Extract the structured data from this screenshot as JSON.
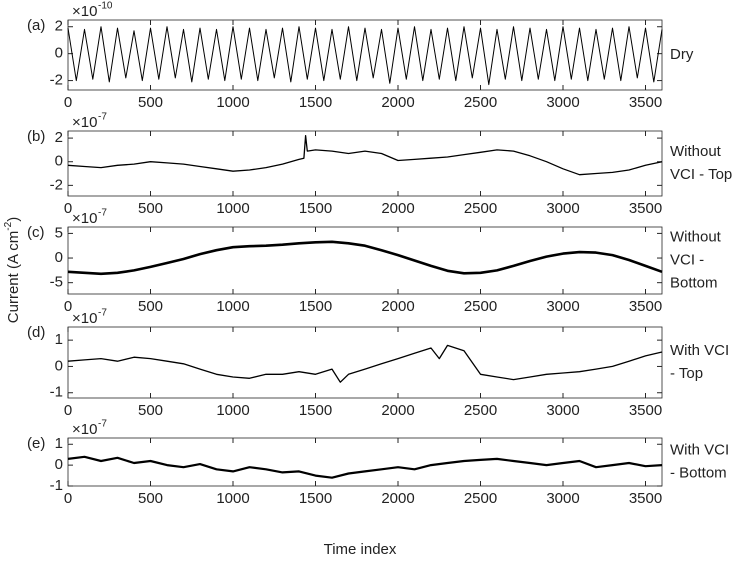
{
  "figure": {
    "y_label": [
      "Current (A cm",
      "-2",
      ")"
    ],
    "x_label": "Time index"
  },
  "chart_data": [
    {
      "type": "line",
      "panel_label": "(a)",
      "side_label": [
        "Dry"
      ],
      "color": "#000000",
      "line_width": 1,
      "y_multiplier": {
        "base": "×10",
        "exponent": "-10"
      },
      "xlim": [
        0,
        3600
      ],
      "xticks": [
        0,
        500,
        1000,
        1500,
        2000,
        2500,
        3000,
        3500
      ],
      "ylim": [
        -2.7,
        2.5
      ],
      "yticks": [
        -2,
        0,
        2
      ],
      "x": [
        0,
        50,
        100,
        150,
        200,
        250,
        300,
        350,
        400,
        450,
        500,
        550,
        600,
        650,
        700,
        750,
        800,
        850,
        900,
        950,
        1000,
        1050,
        1100,
        1150,
        1200,
        1250,
        1300,
        1350,
        1400,
        1450,
        1500,
        1550,
        1600,
        1650,
        1700,
        1750,
        1800,
        1850,
        1900,
        1950,
        2000,
        2050,
        2100,
        2150,
        2200,
        2250,
        2300,
        2350,
        2400,
        2450,
        2500,
        2550,
        2600,
        2650,
        2700,
        2750,
        2800,
        2850,
        2900,
        2950,
        3000,
        3050,
        3100,
        3150,
        3200,
        3250,
        3300,
        3350,
        3400,
        3450,
        3500,
        3550,
        3600
      ],
      "values": [
        1.9,
        -2.0,
        1.8,
        -1.9,
        2.0,
        -2.1,
        1.9,
        -1.8,
        1.7,
        -2.0,
        1.9,
        -1.9,
        2.0,
        -1.8,
        1.8,
        -2.1,
        1.9,
        -1.9,
        1.8,
        -2.0,
        2.0,
        -1.9,
        1.9,
        -2.0,
        1.8,
        -1.8,
        1.9,
        -2.1,
        2.0,
        -1.9,
        1.9,
        -2.0,
        1.8,
        -1.9,
        2.0,
        -2.0,
        1.9,
        -1.8,
        1.8,
        -2.2,
        1.9,
        -1.9,
        2.0,
        -2.0,
        1.8,
        -1.9,
        1.9,
        -2.0,
        2.0,
        -1.8,
        1.9,
        -2.3,
        1.8,
        -1.9,
        2.0,
        -2.0,
        1.9,
        -1.9,
        1.8,
        -2.0,
        2.0,
        -1.9,
        1.9,
        -2.0,
        1.8,
        -1.9,
        1.9,
        -2.0,
        2.0,
        -1.8,
        1.9,
        -2.1,
        1.8
      ]
    },
    {
      "type": "line",
      "panel_label": "(b)",
      "side_label": [
        "Without",
        "VCI - Top"
      ],
      "color": "#000000",
      "line_width": 1.3,
      "y_multiplier": {
        "base": "×10",
        "exponent": "-7"
      },
      "xlim": [
        0,
        3600
      ],
      "xticks": [
        0,
        500,
        1000,
        1500,
        2000,
        2500,
        3000,
        3500
      ],
      "ylim": [
        -2.9,
        2.6
      ],
      "yticks": [
        -2,
        0,
        2
      ],
      "x": [
        0,
        100,
        200,
        300,
        400,
        500,
        600,
        700,
        800,
        900,
        1000,
        1100,
        1200,
        1300,
        1400,
        1430,
        1440,
        1450,
        1500,
        1600,
        1700,
        1800,
        1900,
        2000,
        2100,
        2200,
        2300,
        2400,
        2500,
        2600,
        2700,
        2800,
        2900,
        3000,
        3100,
        3200,
        3300,
        3400,
        3500,
        3600
      ],
      "values": [
        -0.3,
        -0.4,
        -0.5,
        -0.3,
        -0.2,
        0,
        -0.1,
        -0.2,
        -0.4,
        -0.6,
        -0.8,
        -0.7,
        -0.5,
        -0.2,
        0.2,
        0.3,
        2.2,
        0.9,
        1.0,
        0.9,
        0.7,
        0.9,
        0.7,
        0.1,
        0.2,
        0.3,
        0.4,
        0.6,
        0.8,
        1.0,
        0.9,
        0.5,
        0,
        -0.6,
        -1.1,
        -1.0,
        -0.9,
        -0.7,
        -0.3,
        0
      ]
    },
    {
      "type": "line",
      "panel_label": "(c)",
      "side_label": [
        "Without",
        "VCI -",
        "Bottom"
      ],
      "color": "#000000",
      "line_width": 2.6,
      "y_multiplier": {
        "base": "×10",
        "exponent": "-7"
      },
      "xlim": [
        0,
        3600
      ],
      "xticks": [
        0,
        500,
        1000,
        1500,
        2000,
        2500,
        3000,
        3500
      ],
      "ylim": [
        -7.3,
        6.3
      ],
      "yticks": [
        -5,
        0,
        5
      ],
      "x": [
        0,
        100,
        200,
        300,
        400,
        500,
        600,
        700,
        800,
        900,
        1000,
        1100,
        1200,
        1300,
        1400,
        1500,
        1600,
        1700,
        1800,
        1900,
        2000,
        2100,
        2200,
        2300,
        2400,
        2500,
        2600,
        2700,
        2800,
        2900,
        3000,
        3100,
        3200,
        3300,
        3400,
        3500,
        3600
      ],
      "values": [
        -2.8,
        -3.0,
        -3.2,
        -3.0,
        -2.5,
        -1.8,
        -1.0,
        -0.2,
        0.8,
        1.6,
        2.2,
        2.4,
        2.5,
        2.7,
        3.0,
        3.2,
        3.3,
        3.0,
        2.5,
        1.6,
        0.6,
        -0.5,
        -1.6,
        -2.6,
        -3.1,
        -3.0,
        -2.5,
        -1.6,
        -0.6,
        0.3,
        0.9,
        1.2,
        1.1,
        0.6,
        -0.4,
        -1.6,
        -2.8
      ]
    },
    {
      "type": "line",
      "panel_label": "(d)",
      "side_label": [
        "With VCI",
        "- Top"
      ],
      "color": "#000000",
      "line_width": 1.3,
      "y_multiplier": {
        "base": "×10",
        "exponent": "-7"
      },
      "xlim": [
        0,
        3600
      ],
      "xticks": [
        0,
        500,
        1000,
        1500,
        2000,
        2500,
        3000,
        3500
      ],
      "ylim": [
        -1.2,
        1.5
      ],
      "yticks": [
        -1,
        0,
        1
      ],
      "x": [
        0,
        100,
        200,
        300,
        400,
        500,
        600,
        700,
        800,
        900,
        1000,
        1100,
        1200,
        1300,
        1400,
        1500,
        1600,
        1650,
        1700,
        1800,
        1900,
        2000,
        2100,
        2200,
        2250,
        2300,
        2400,
        2500,
        2600,
        2700,
        2800,
        2900,
        3000,
        3100,
        3200,
        3300,
        3400,
        3500,
        3600
      ],
      "values": [
        0.2,
        0.25,
        0.3,
        0.2,
        0.35,
        0.3,
        0.2,
        0.1,
        -0.1,
        -0.3,
        -0.4,
        -0.45,
        -0.3,
        -0.3,
        -0.2,
        -0.3,
        -0.1,
        -0.6,
        -0.3,
        -0.1,
        0.1,
        0.3,
        0.5,
        0.7,
        0.3,
        0.8,
        0.6,
        -0.3,
        -0.4,
        -0.5,
        -0.4,
        -0.3,
        -0.25,
        -0.2,
        -0.1,
        0,
        0.2,
        0.4,
        0.55
      ]
    },
    {
      "type": "line",
      "panel_label": "(e)",
      "side_label": [
        "With VCI",
        "- Bottom"
      ],
      "color": "#000000",
      "line_width": 2.2,
      "y_multiplier": {
        "base": "×10",
        "exponent": "-7"
      },
      "xlim": [
        0,
        3600
      ],
      "xticks": [
        0,
        500,
        1000,
        1500,
        2000,
        2500,
        3000,
        3500
      ],
      "ylim": [
        -1,
        1.3
      ],
      "yticks": [
        -1,
        0,
        1
      ],
      "x": [
        0,
        100,
        200,
        300,
        400,
        500,
        600,
        700,
        800,
        900,
        1000,
        1100,
        1200,
        1300,
        1400,
        1500,
        1600,
        1700,
        1800,
        1900,
        2000,
        2100,
        2200,
        2300,
        2400,
        2500,
        2600,
        2700,
        2800,
        2900,
        3000,
        3100,
        3200,
        3300,
        3400,
        3500,
        3600
      ],
      "values": [
        0.3,
        0.4,
        0.2,
        0.35,
        0.1,
        0.2,
        0,
        -0.1,
        0.05,
        -0.2,
        -0.3,
        -0.1,
        -0.2,
        -0.35,
        -0.3,
        -0.5,
        -0.6,
        -0.4,
        -0.3,
        -0.2,
        -0.1,
        -0.2,
        0,
        0.1,
        0.2,
        0.25,
        0.3,
        0.2,
        0.1,
        0,
        0.1,
        0.2,
        -0.1,
        0,
        0.1,
        -0.05,
        0
      ]
    }
  ]
}
